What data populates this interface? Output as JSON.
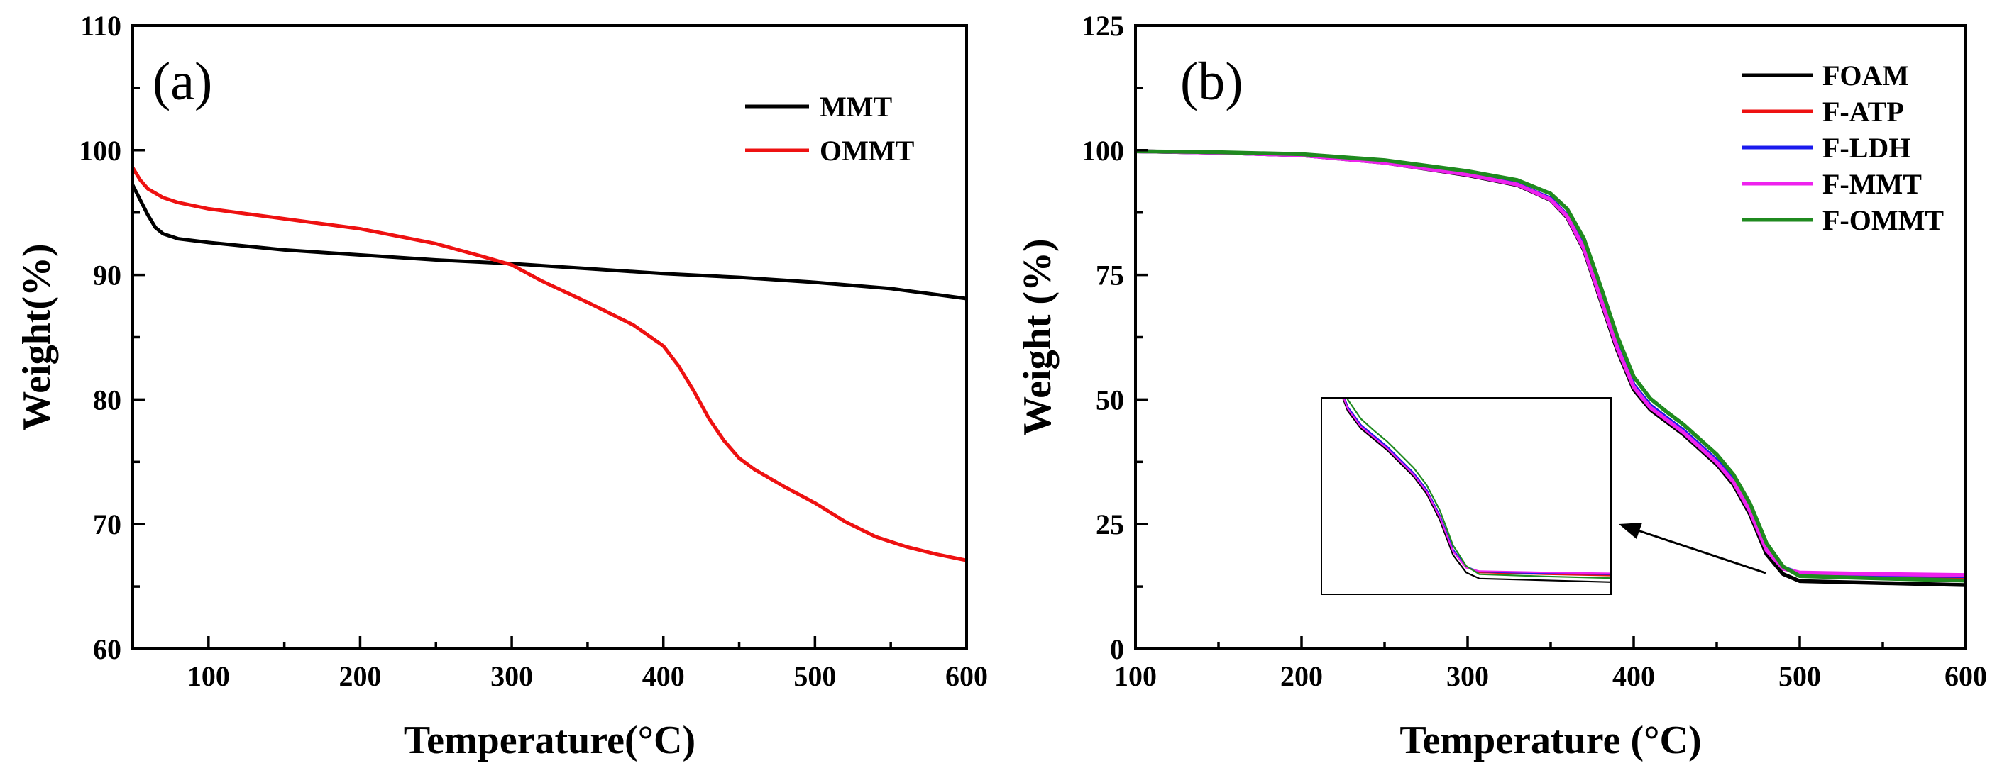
{
  "chart_data": [
    {
      "type": "line",
      "panel_label": "(a)",
      "xlabel": "Temperature(°C)",
      "ylabel": "Weight(%)",
      "xlim": [
        50,
        600
      ],
      "ylim": [
        60,
        110
      ],
      "xticks": [
        100,
        200,
        300,
        400,
        500,
        600
      ],
      "yticks": [
        60,
        70,
        80,
        90,
        100,
        110
      ],
      "legend_position": "top-right",
      "series": [
        {
          "name": "MMT",
          "color": "#000000",
          "x": [
            50,
            55,
            60,
            65,
            70,
            75,
            80,
            100,
            150,
            200,
            250,
            300,
            350,
            400,
            450,
            500,
            550,
            600
          ],
          "y": [
            97.2,
            96.0,
            94.8,
            93.8,
            93.3,
            93.1,
            92.9,
            92.6,
            92.0,
            91.6,
            91.2,
            90.9,
            90.5,
            90.1,
            89.8,
            89.4,
            88.9,
            88.1
          ]
        },
        {
          "name": "OMMT",
          "color": "#ee1111",
          "x": [
            50,
            55,
            60,
            70,
            80,
            100,
            150,
            200,
            250,
            280,
            300,
            320,
            350,
            380,
            400,
            410,
            420,
            430,
            440,
            450,
            460,
            480,
            500,
            520,
            540,
            560,
            580,
            600
          ],
          "y": [
            98.6,
            97.6,
            96.9,
            96.2,
            95.8,
            95.3,
            94.5,
            93.7,
            92.5,
            91.5,
            90.8,
            89.5,
            87.8,
            86.0,
            84.3,
            82.7,
            80.7,
            78.5,
            76.7,
            75.3,
            74.4,
            73.0,
            71.7,
            70.2,
            69.0,
            68.2,
            67.6,
            67.1
          ]
        }
      ]
    },
    {
      "type": "line",
      "panel_label": "(b)",
      "xlabel": "Temperature (°C)",
      "ylabel": "Weight (%)",
      "xlim": [
        100,
        600
      ],
      "ylim": [
        0,
        125
      ],
      "xticks": [
        100,
        200,
        300,
        400,
        500,
        600
      ],
      "yticks": [
        0,
        25,
        50,
        75,
        100,
        125
      ],
      "legend_position": "top-right",
      "has_inset": true,
      "series": [
        {
          "name": "FOAM",
          "color": "#000000",
          "x": [
            100,
            150,
            200,
            250,
            300,
            330,
            350,
            360,
            370,
            380,
            390,
            400,
            410,
            420,
            430,
            440,
            450,
            460,
            470,
            480,
            490,
            500,
            550,
            600
          ],
          "y": [
            99.8,
            99.5,
            99.0,
            97.5,
            95.0,
            93.0,
            90.0,
            86.5,
            80.0,
            70.0,
            60.0,
            52.0,
            48.0,
            45.5,
            43.0,
            40.0,
            37.0,
            33.0,
            27.0,
            19.0,
            15.0,
            13.6,
            13.2,
            12.8
          ]
        },
        {
          "name": "F-ATP",
          "color": "#ee1111",
          "x": [
            100,
            150,
            200,
            250,
            300,
            330,
            350,
            360,
            370,
            380,
            390,
            400,
            410,
            420,
            430,
            440,
            450,
            460,
            470,
            480,
            490,
            500,
            550,
            600
          ],
          "y": [
            99.8,
            99.5,
            99.0,
            97.6,
            95.2,
            93.2,
            90.3,
            86.9,
            80.6,
            70.8,
            60.9,
            52.9,
            48.8,
            46.3,
            43.8,
            40.8,
            37.8,
            33.9,
            28.0,
            20.2,
            16.2,
            15.0,
            14.6,
            14.3
          ]
        },
        {
          "name": "F-LDH",
          "color": "#1a1aee",
          "x": [
            100,
            150,
            200,
            250,
            300,
            330,
            350,
            360,
            370,
            380,
            390,
            400,
            410,
            420,
            430,
            440,
            450,
            460,
            470,
            480,
            490,
            500,
            550,
            600
          ],
          "y": [
            99.8,
            99.5,
            99.0,
            97.6,
            95.2,
            93.2,
            90.3,
            86.9,
            80.6,
            70.8,
            60.9,
            52.9,
            48.8,
            46.3,
            43.8,
            40.8,
            37.8,
            33.9,
            28.0,
            20.2,
            16.3,
            15.2,
            14.8,
            14.6
          ]
        },
        {
          "name": "F-MMT",
          "color": "#ee22ee",
          "x": [
            100,
            150,
            200,
            250,
            300,
            330,
            350,
            360,
            370,
            380,
            390,
            400,
            410,
            420,
            430,
            440,
            450,
            460,
            470,
            480,
            490,
            500,
            550,
            600
          ],
          "y": [
            99.8,
            99.5,
            99.0,
            97.5,
            95.1,
            93.1,
            90.1,
            86.7,
            80.3,
            70.4,
            60.5,
            52.5,
            48.4,
            45.9,
            43.4,
            40.4,
            37.4,
            33.5,
            27.6,
            19.8,
            16.1,
            15.3,
            15.0,
            14.8
          ]
        },
        {
          "name": "F-OMMT",
          "color": "#1f8a1f",
          "x": [
            100,
            150,
            200,
            250,
            300,
            330,
            350,
            360,
            370,
            380,
            390,
            400,
            410,
            420,
            430,
            440,
            450,
            460,
            470,
            480,
            490,
            500,
            550,
            600
          ],
          "y": [
            99.8,
            99.6,
            99.2,
            98.0,
            95.8,
            94.0,
            91.3,
            88.2,
            82.3,
            72.8,
            62.8,
            54.6,
            50.2,
            47.5,
            45.0,
            42.0,
            39.0,
            35.0,
            29.2,
            21.2,
            16.5,
            14.6,
            14.1,
            13.7
          ]
        }
      ]
    }
  ]
}
